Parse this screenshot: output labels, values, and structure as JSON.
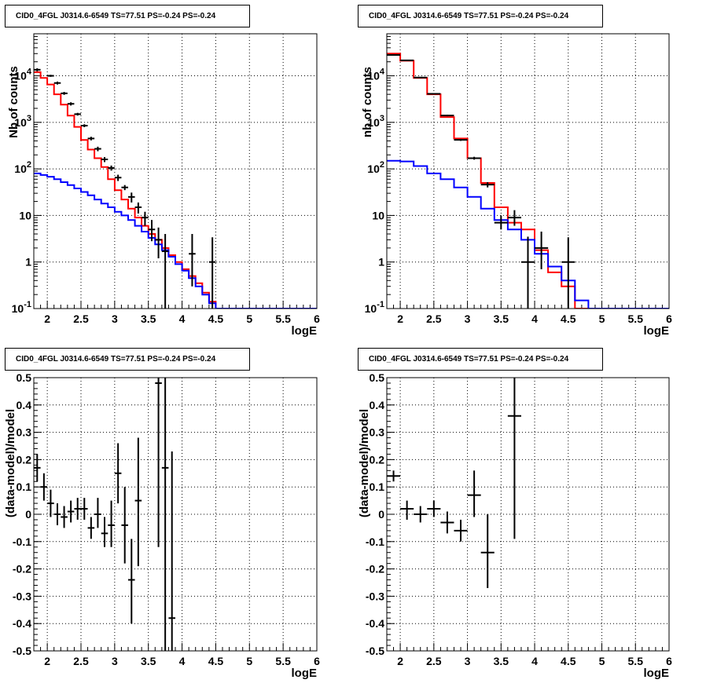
{
  "chart_data": [
    {
      "type": "line",
      "title": "CID0_4FGL J0314.6-6549 TS=77.51 PS=-0.24 PS=-0.24",
      "xlabel": "logE",
      "ylabel": "Nb of counts",
      "yscale": "log",
      "xlim": [
        1.8,
        6.0
      ],
      "ylim": [
        0.1,
        80000
      ],
      "grid": true,
      "xticks": [
        "2",
        "2.5",
        "3",
        "3.5",
        "4",
        "4.5",
        "5",
        "5.5",
        "6"
      ],
      "yticks": [
        "10^-1",
        "1",
        "10",
        "10^2",
        "10^3",
        "10^4"
      ],
      "series": [
        {
          "kind": "step",
          "color": "#ff0000",
          "bin_width": 0.1,
          "x": [
            1.8,
            1.9,
            2.0,
            2.1,
            2.2,
            2.3,
            2.4,
            2.5,
            2.6,
            2.7,
            2.8,
            2.9,
            3.0,
            3.1,
            3.2,
            3.3,
            3.4,
            3.5,
            3.6,
            3.7,
            3.8,
            3.9,
            4.0,
            4.1,
            4.2,
            4.3,
            4.4,
            4.5,
            4.6,
            4.7,
            4.8,
            4.9,
            5.0,
            5.1,
            5.2,
            5.3,
            5.4,
            5.5,
            5.6,
            5.7,
            5.8,
            5.9
          ],
          "y": [
            12000,
            9000,
            6500,
            4000,
            2400,
            1400,
            800,
            420,
            260,
            170,
            110,
            60,
            35,
            22,
            14,
            9,
            6,
            4,
            3,
            2,
            1.4,
            1,
            0.7,
            0.5,
            0.35,
            0.22,
            0.14,
            0.1,
            0.1,
            0.1,
            0.1,
            0.1,
            0.1,
            0.1,
            0.1,
            0.1,
            0.1,
            0.1,
            0.1,
            0.1,
            0.1,
            0.1
          ]
        },
        {
          "kind": "step",
          "color": "#0000ff",
          "bin_width": 0.1,
          "x": [
            1.8,
            1.9,
            2.0,
            2.1,
            2.2,
            2.3,
            2.4,
            2.5,
            2.6,
            2.7,
            2.8,
            2.9,
            3.0,
            3.1,
            3.2,
            3.3,
            3.4,
            3.5,
            3.6,
            3.7,
            3.8,
            3.9,
            4.0,
            4.1,
            4.2,
            4.3,
            4.4,
            4.5,
            4.6,
            4.7,
            4.8,
            4.9,
            5.0,
            5.1,
            5.2,
            5.3,
            5.4,
            5.5,
            5.6,
            5.7,
            5.8,
            5.9
          ],
          "y": [
            80,
            74,
            68,
            60,
            52,
            45,
            38,
            32,
            27,
            22,
            18,
            15,
            12,
            10,
            8,
            6,
            4.5,
            3.3,
            2.4,
            1.8,
            1.3,
            0.9,
            0.65,
            0.45,
            0.3,
            0.2,
            0.13,
            0.1,
            0.1,
            0.1,
            0.1,
            0.1,
            0.1,
            0.1,
            0.1,
            0.1,
            0.1,
            0.1,
            0.1,
            0.1,
            0.1,
            0.1
          ]
        },
        {
          "kind": "errorbar",
          "color": "#000000",
          "x": [
            1.85,
            2.05,
            2.15,
            2.25,
            2.35,
            2.45,
            2.55,
            2.65,
            2.75,
            2.85,
            2.95,
            3.05,
            3.15,
            3.25,
            3.35,
            3.45,
            3.55,
            3.65,
            3.75,
            4.15,
            4.45
          ],
          "y": [
            13500,
            10000,
            7000,
            4200,
            2500,
            1500,
            850,
            450,
            270,
            160,
            105,
            65,
            40,
            25,
            15,
            9,
            5,
            3,
            1.7,
            1.5,
            1
          ],
          "xerr": 0.05,
          "ylo": [
            12500,
            9500,
            6500,
            3900,
            2300,
            1400,
            790,
            410,
            240,
            140,
            92,
            55,
            35,
            19,
            11,
            6,
            2.8,
            1.2,
            0.1,
            0.3,
            0.1
          ],
          "yhi": [
            14500,
            10500,
            7500,
            4500,
            2700,
            1600,
            910,
            490,
            300,
            180,
            118,
            75,
            45,
            31,
            19,
            12,
            8,
            5.5,
            4,
            4,
            3.4
          ]
        }
      ]
    },
    {
      "type": "line",
      "title": "CID0_4FGL J0314.6-6549 TS=77.51 PS=-0.24 PS=-0.24",
      "xlabel": "logE",
      "ylabel": "nb of counts",
      "yscale": "log",
      "xlim": [
        1.8,
        6.0
      ],
      "ylim": [
        0.1,
        80000
      ],
      "grid": true,
      "xticks": [
        "2",
        "2.5",
        "3",
        "3.5",
        "4",
        "4.5",
        "5",
        "5.5",
        "6"
      ],
      "yticks": [
        "10^-1",
        "1",
        "10",
        "10^2",
        "10^3",
        "10^4"
      ],
      "series": [
        {
          "kind": "step",
          "color": "#ff0000",
          "bin_width": 0.2,
          "x": [
            1.8,
            2.0,
            2.2,
            2.4,
            2.6,
            2.8,
            3.0,
            3.2,
            3.4,
            3.6,
            3.8,
            4.0,
            4.2,
            4.4,
            4.6,
            4.8,
            5.0,
            5.2,
            5.4,
            5.6,
            5.8
          ],
          "y": [
            30000,
            21000,
            9000,
            4000,
            1300,
            450,
            170,
            50,
            15,
            7,
            5,
            1.8,
            0.6,
            0.3,
            0.1,
            0.1,
            0.1,
            0.1,
            0.1,
            0.1,
            0.1
          ]
        },
        {
          "kind": "step",
          "color": "#0000ff",
          "bin_width": 0.2,
          "x": [
            1.8,
            2.0,
            2.2,
            2.4,
            2.6,
            2.8,
            3.0,
            3.2,
            3.4,
            3.6,
            3.8,
            4.0,
            4.2,
            4.4,
            4.6,
            4.8,
            5.0,
            5.2,
            5.4,
            5.6,
            5.8
          ],
          "y": [
            150,
            145,
            115,
            80,
            60,
            40,
            25,
            14,
            8,
            5,
            3,
            1.5,
            0.8,
            0.4,
            0.15,
            0.1,
            0.1,
            0.1,
            0.1,
            0.1,
            0.1
          ]
        },
        {
          "kind": "errorbar",
          "color": "#000000",
          "x": [
            1.9,
            2.1,
            2.3,
            2.5,
            2.7,
            2.9,
            3.1,
            3.3,
            3.5,
            3.7,
            3.9,
            4.1,
            4.5
          ],
          "y": [
            28000,
            21500,
            9200,
            4100,
            1400,
            420,
            170,
            46,
            7,
            9,
            1,
            2,
            1
          ],
          "xerr": 0.1,
          "ylo": [
            27000,
            21000,
            8900,
            3950,
            1350,
            400,
            158,
            40,
            5,
            6,
            0.1,
            0.7,
            0.1
          ],
          "yhi": [
            29000,
            22000,
            9500,
            4250,
            1450,
            440,
            182,
            52,
            10,
            13,
            3.5,
            4.5,
            3.4
          ]
        }
      ]
    },
    {
      "type": "scatter",
      "title": "CID0_4FGL J0314.6-6549 TS=77.51 PS=-0.24 PS=-0.24",
      "xlabel": "logE",
      "ylabel": "(data-model)/model",
      "xlim": [
        1.8,
        6.0
      ],
      "ylim": [
        -0.5,
        0.5
      ],
      "grid": true,
      "xticks": [
        "2",
        "2.5",
        "3",
        "3.5",
        "4",
        "4.5",
        "5",
        "5.5",
        "6"
      ],
      "yticks": [
        "-0.5",
        "-0.4",
        "-0.3",
        "-0.2",
        "-0.1",
        "0",
        "0.1",
        "0.2",
        "0.3",
        "0.4",
        "0.5"
      ],
      "series": [
        {
          "kind": "errorbar",
          "color": "#000000",
          "x": [
            1.85,
            1.95,
            2.05,
            2.15,
            2.25,
            2.35,
            2.45,
            2.55,
            2.65,
            2.75,
            2.85,
            2.95,
            3.05,
            3.15,
            3.25,
            3.35,
            3.65,
            3.75,
            3.85
          ],
          "y": [
            0.17,
            0.1,
            0.04,
            0.0,
            -0.01,
            0.01,
            0.02,
            0.02,
            -0.05,
            0.0,
            -0.07,
            -0.04,
            0.15,
            -0.04,
            -0.24,
            0.05,
            0.48,
            0.17,
            -0.38
          ],
          "xerr": 0.05,
          "ylo": [
            0.12,
            0.05,
            -0.01,
            -0.04,
            -0.05,
            -0.03,
            -0.02,
            -0.02,
            -0.09,
            -0.05,
            -0.12,
            -0.12,
            0.04,
            -0.18,
            -0.4,
            -0.19,
            -0.12,
            -0.5,
            -0.5
          ],
          "yhi": [
            0.22,
            0.15,
            0.09,
            0.04,
            0.03,
            0.05,
            0.06,
            0.06,
            -0.01,
            0.06,
            -0.01,
            0.05,
            0.26,
            0.1,
            -0.09,
            0.28,
            0.5,
            0.5,
            0.23
          ]
        }
      ]
    },
    {
      "type": "scatter",
      "title": "CID0_4FGL J0314.6-6549 TS=77.51 PS=-0.24 PS=-0.24",
      "xlabel": "logE",
      "ylabel": "(data-model)/model",
      "xlim": [
        1.8,
        6.0
      ],
      "ylim": [
        -0.5,
        0.5
      ],
      "grid": true,
      "xticks": [
        "2",
        "2.5",
        "3",
        "3.5",
        "4",
        "4.5",
        "5",
        "5.5",
        "6"
      ],
      "yticks": [
        "-0.5",
        "-0.4",
        "-0.3",
        "-0.2",
        "-0.1",
        "0",
        "0.1",
        "0.2",
        "0.3",
        "0.4",
        "0.5"
      ],
      "series": [
        {
          "kind": "errorbar",
          "color": "#000000",
          "x": [
            1.9,
            2.1,
            2.3,
            2.5,
            2.7,
            2.9,
            3.1,
            3.3,
            3.7
          ],
          "y": [
            0.14,
            0.02,
            0.0,
            0.02,
            -0.03,
            -0.06,
            0.07,
            -0.14,
            0.36
          ],
          "xerr": 0.1,
          "ylo": [
            0.12,
            -0.02,
            -0.03,
            -0.01,
            -0.07,
            -0.1,
            -0.01,
            -0.27,
            -0.09
          ],
          "yhi": [
            0.16,
            0.05,
            0.03,
            0.05,
            0.01,
            -0.02,
            0.16,
            0.0,
            0.5
          ]
        }
      ]
    }
  ]
}
